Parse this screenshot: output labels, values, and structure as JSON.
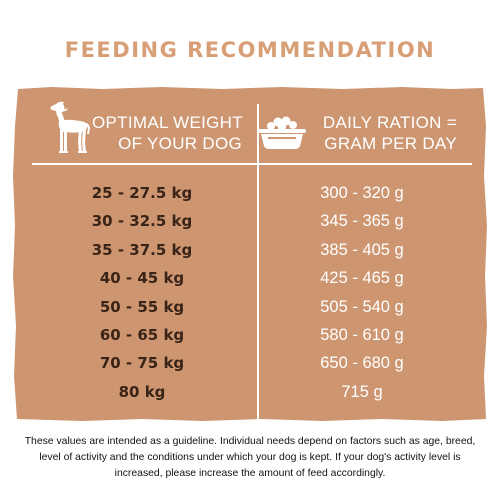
{
  "title": "FEEDING RECOMMENDATION",
  "table": {
    "header_left": {
      "icon": "dog-icon",
      "line1": "OPTIMAL WEIGHT",
      "line2": "OF YOUR DOG"
    },
    "header_right": {
      "icon": "food-bowl-icon",
      "line1": "DAILY RATION =",
      "line2": "GRAM PER DAY"
    },
    "rows": [
      {
        "weight": "25 - 27.5 kg",
        "ration": "300 - 320 g"
      },
      {
        "weight": "30 - 32.5 kg",
        "ration": "345 - 365 g"
      },
      {
        "weight": "35 - 37.5 kg",
        "ration": "385 - 405 g"
      },
      {
        "weight": "40 - 45 kg",
        "ration": "425 - 465 g"
      },
      {
        "weight": "50 - 55 kg",
        "ration": "505 - 540 g"
      },
      {
        "weight": "60 - 65 kg",
        "ration": "580 - 610 g"
      },
      {
        "weight": "70 - 75 kg",
        "ration": "650 - 680 g"
      },
      {
        "weight": "80 kg",
        "ration": "715 g"
      }
    ]
  },
  "footnote": "These values are intended as a guideline. Individual needs depend on factors such as age, breed, level of activity and the conditions under which your dog is kept. If your dog's activity level is increased, please increase the amount of feed accordingly.",
  "colors": {
    "title": "#d89e76",
    "panel": "#cd9671",
    "weight_text": "#3a2417",
    "ration_text": "#ffffff"
  }
}
